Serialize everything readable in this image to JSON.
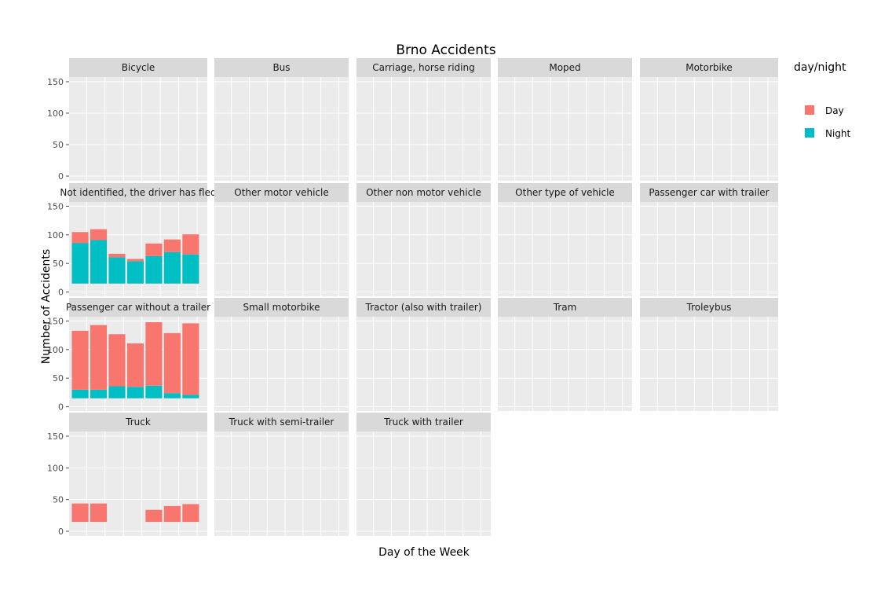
{
  "chart_data": {
    "type": "bar",
    "title": "Brno Accidents",
    "xlabel": "Day of the Week",
    "ylabel": "Number of Accidents",
    "ylim": [
      0,
      150
    ],
    "yticks": [
      0,
      50,
      100,
      150
    ],
    "n_days": 7,
    "legend": {
      "title": "day/night",
      "placement": "right",
      "entries": [
        {
          "name": "Day",
          "color": "#F8766D"
        },
        {
          "name": "Night",
          "color": "#00BFC4"
        }
      ]
    },
    "colors": {
      "panel_bg": "#EBEBEB",
      "strip_bg": "#D9D9D9",
      "grid": "#FFFFFF",
      "day": "#F8766D",
      "night": "#00BFC4"
    },
    "panels": [
      {
        "label": "Bicycle",
        "night": [],
        "day": []
      },
      {
        "label": "Bus",
        "night": [],
        "day": []
      },
      {
        "label": "Carriage, horse riding",
        "night": [],
        "day": []
      },
      {
        "label": "Moped",
        "night": [],
        "day": []
      },
      {
        "label": "Motorbike",
        "night": [],
        "day": []
      },
      {
        "label": "Not identified, the driver has fled",
        "night": [
          71,
          76,
          46,
          39,
          48,
          55,
          51
        ],
        "day": [
          19,
          19,
          6,
          4,
          22,
          22,
          35
        ]
      },
      {
        "label": "Other motor vehicle",
        "night": [],
        "day": []
      },
      {
        "label": "Other non motor vehicle",
        "night": [],
        "day": []
      },
      {
        "label": "Other type of vehicle",
        "night": [],
        "day": []
      },
      {
        "label": "Passenger car with trailer",
        "night": [],
        "day": []
      },
      {
        "label": "Passenger car without a trailer",
        "night": [
          15,
          15,
          21,
          20,
          22,
          9,
          6
        ],
        "day": [
          103,
          113,
          91,
          76,
          111,
          105,
          125
        ]
      },
      {
        "label": "Small motorbike",
        "night": [],
        "day": []
      },
      {
        "label": "Tractor (also with trailer)",
        "night": [],
        "day": []
      },
      {
        "label": "Tram",
        "night": [],
        "day": []
      },
      {
        "label": "Troleybus",
        "night": [],
        "day": []
      },
      {
        "label": "Truck",
        "night": [
          0,
          0,
          0,
          0,
          0,
          0,
          0
        ],
        "day": [
          29,
          29,
          0,
          0,
          19,
          25,
          28
        ]
      },
      {
        "label": "Truck with semi-trailer",
        "night": [],
        "day": []
      },
      {
        "label": "Truck with trailer",
        "night": [],
        "day": []
      }
    ]
  }
}
